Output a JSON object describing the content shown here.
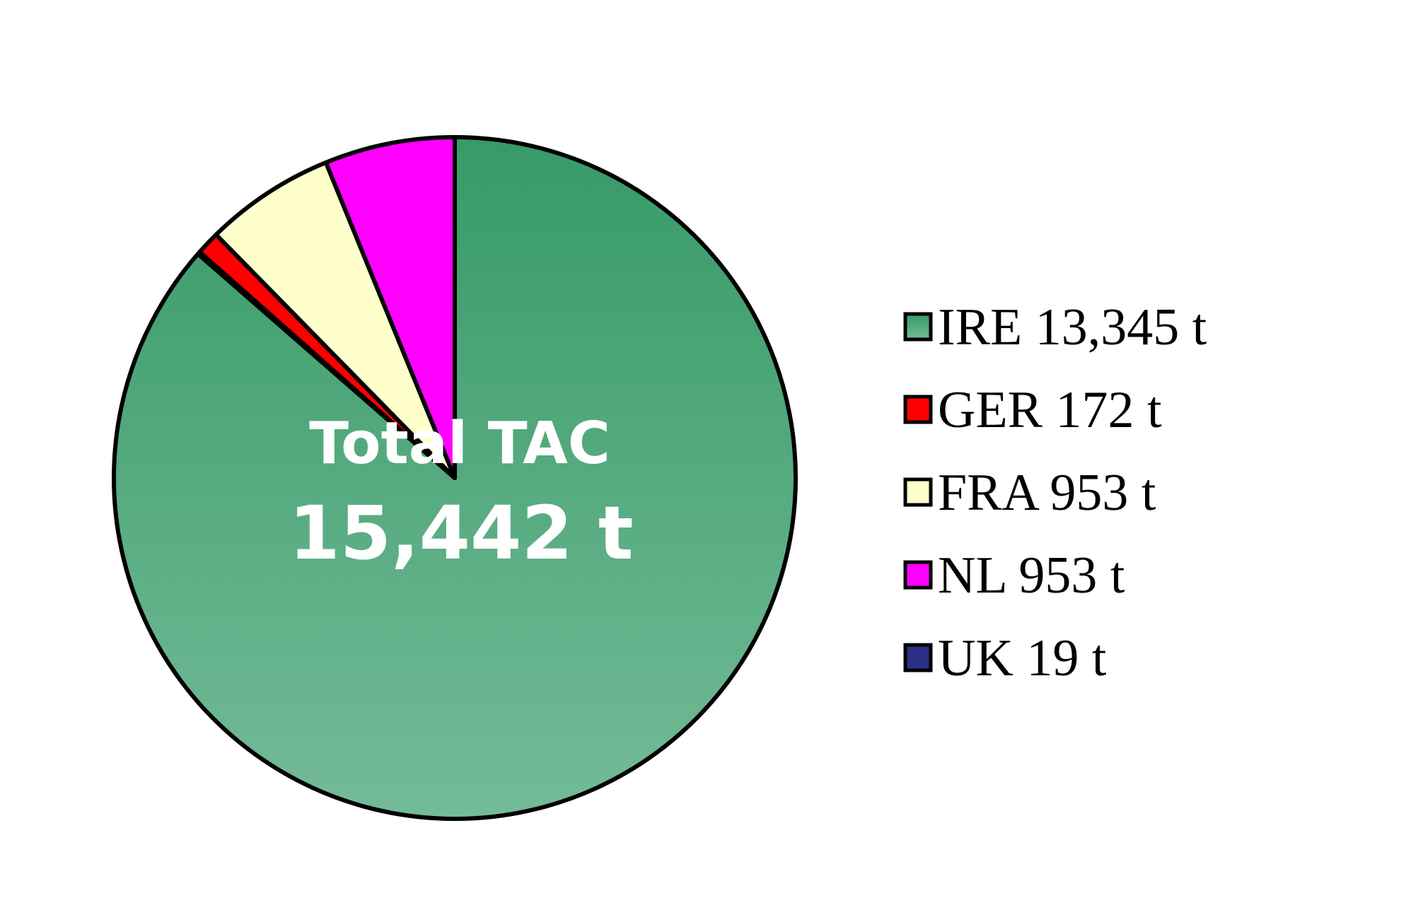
{
  "chart_data": {
    "type": "pie",
    "center_label": {
      "line1": "Total TAC",
      "line2": "15,442 t"
    },
    "start_angle": "12 o'clock",
    "direction": "clockwise",
    "legend_position": "right",
    "slices": [
      {
        "key": "IRE",
        "value": 13345,
        "label": "IRE 13,345 t",
        "color_top": "#379a67",
        "color_bottom": "#74bb98"
      },
      {
        "key": "UK",
        "value": 19,
        "label": "UK 19 t",
        "color_top": "#2b2f86",
        "color_bottom": "#2b2f86"
      },
      {
        "key": "GER",
        "value": 172,
        "label": "GER 172 t",
        "color_top": "#ff0000",
        "color_bottom": "#ff0000"
      },
      {
        "key": "FRA",
        "value": 953,
        "label": "FRA 953 t",
        "color_top": "#ffffcc",
        "color_bottom": "#ffffcc"
      },
      {
        "key": "NL",
        "value": 953,
        "label": "NL 953 t",
        "color_top": "#ff00ff",
        "color_bottom": "#ff00ff"
      }
    ],
    "legend_order": [
      "IRE",
      "GER",
      "FRA",
      "NL",
      "UK"
    ]
  }
}
